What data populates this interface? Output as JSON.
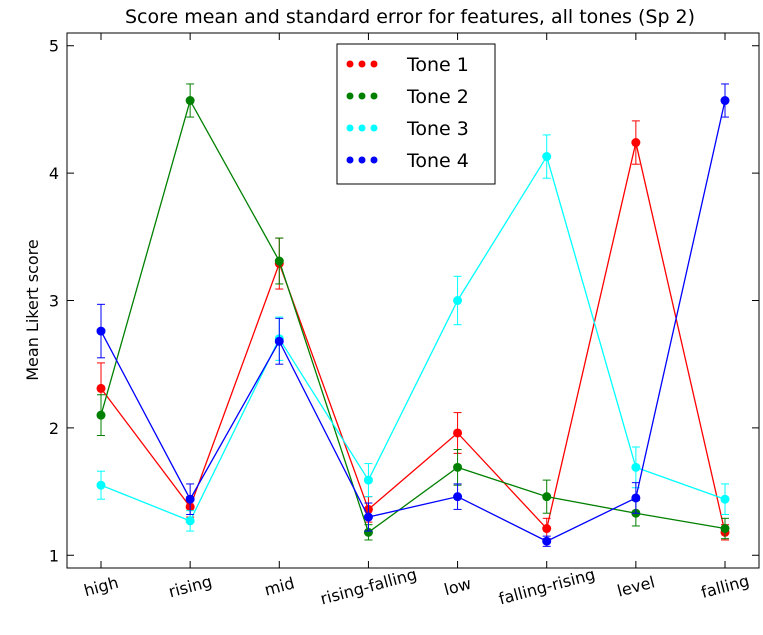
{
  "chart_data": {
    "type": "line",
    "title": "Score mean and standard error for features, all tones (Sp 2)",
    "xlabel": "",
    "ylabel": "Mean Likert score",
    "categories": [
      "high",
      "rising",
      "mid",
      "rising-falling",
      "low",
      "falling-rising",
      "level",
      "falling"
    ],
    "ylim": [
      0.9,
      5.1
    ],
    "yticks": [
      1,
      2,
      3,
      4,
      5
    ],
    "grid": false,
    "legend_position": "top-center",
    "series": [
      {
        "name": "Tone 1",
        "color": "#ff0000",
        "values": [
          2.31,
          1.38,
          3.29,
          1.36,
          1.96,
          1.21,
          4.24,
          1.18
        ],
        "errors": [
          0.2,
          0.08,
          0.2,
          0.1,
          0.16,
          0.08,
          0.17,
          0.06
        ]
      },
      {
        "name": "Tone 2",
        "color": "#008000",
        "values": [
          2.1,
          4.57,
          3.31,
          1.18,
          1.69,
          1.46,
          1.33,
          1.21
        ],
        "errors": [
          0.16,
          0.13,
          0.18,
          0.06,
          0.14,
          0.13,
          0.1,
          0.08
        ]
      },
      {
        "name": "Tone 3",
        "color": "#00ffff",
        "values": [
          1.55,
          1.27,
          2.7,
          1.59,
          3.0,
          4.13,
          1.69,
          1.44
        ],
        "errors": [
          0.11,
          0.08,
          0.17,
          0.13,
          0.19,
          0.17,
          0.16,
          0.12
        ]
      },
      {
        "name": "Tone 4",
        "color": "#0000ff",
        "values": [
          2.76,
          1.44,
          2.68,
          1.3,
          1.46,
          1.11,
          1.45,
          4.57
        ],
        "errors": [
          0.21,
          0.12,
          0.18,
          0.11,
          0.1,
          0.04,
          0.12,
          0.13
        ]
      }
    ]
  }
}
